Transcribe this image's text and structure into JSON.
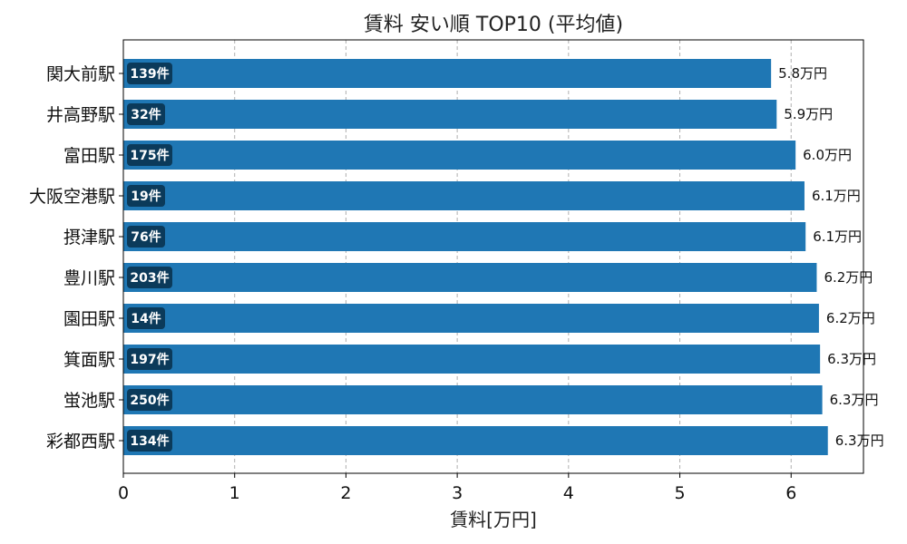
{
  "chart_data": {
    "type": "bar",
    "orientation": "horizontal",
    "title": "賃料 安い順 TOP10 (平均値)",
    "xlabel": "賃料[万円]",
    "ylabel": "",
    "xlim": [
      0,
      6.65
    ],
    "xticks": [
      0,
      1,
      2,
      3,
      4,
      5,
      6
    ],
    "grid": "x-dashed",
    "bar_color": "#1f77b4",
    "badge_color": "#0b3a5a",
    "categories": [
      "関大前駅",
      "井高野駅",
      "富田駅",
      "大阪空港駅",
      "摂津駅",
      "豊川駅",
      "園田駅",
      "箕面駅",
      "蛍池駅",
      "彩都西駅"
    ],
    "values": [
      5.82,
      5.87,
      6.04,
      6.12,
      6.13,
      6.23,
      6.25,
      6.26,
      6.28,
      6.33
    ],
    "value_labels": [
      "5.8万円",
      "5.9万円",
      "6.0万円",
      "6.1万円",
      "6.1万円",
      "6.2万円",
      "6.2万円",
      "6.3万円",
      "6.3万円",
      "6.3万円"
    ],
    "count_labels": [
      "139件",
      "32件",
      "175件",
      "19件",
      "76件",
      "203件",
      "14件",
      "197件",
      "250件",
      "134件"
    ]
  }
}
